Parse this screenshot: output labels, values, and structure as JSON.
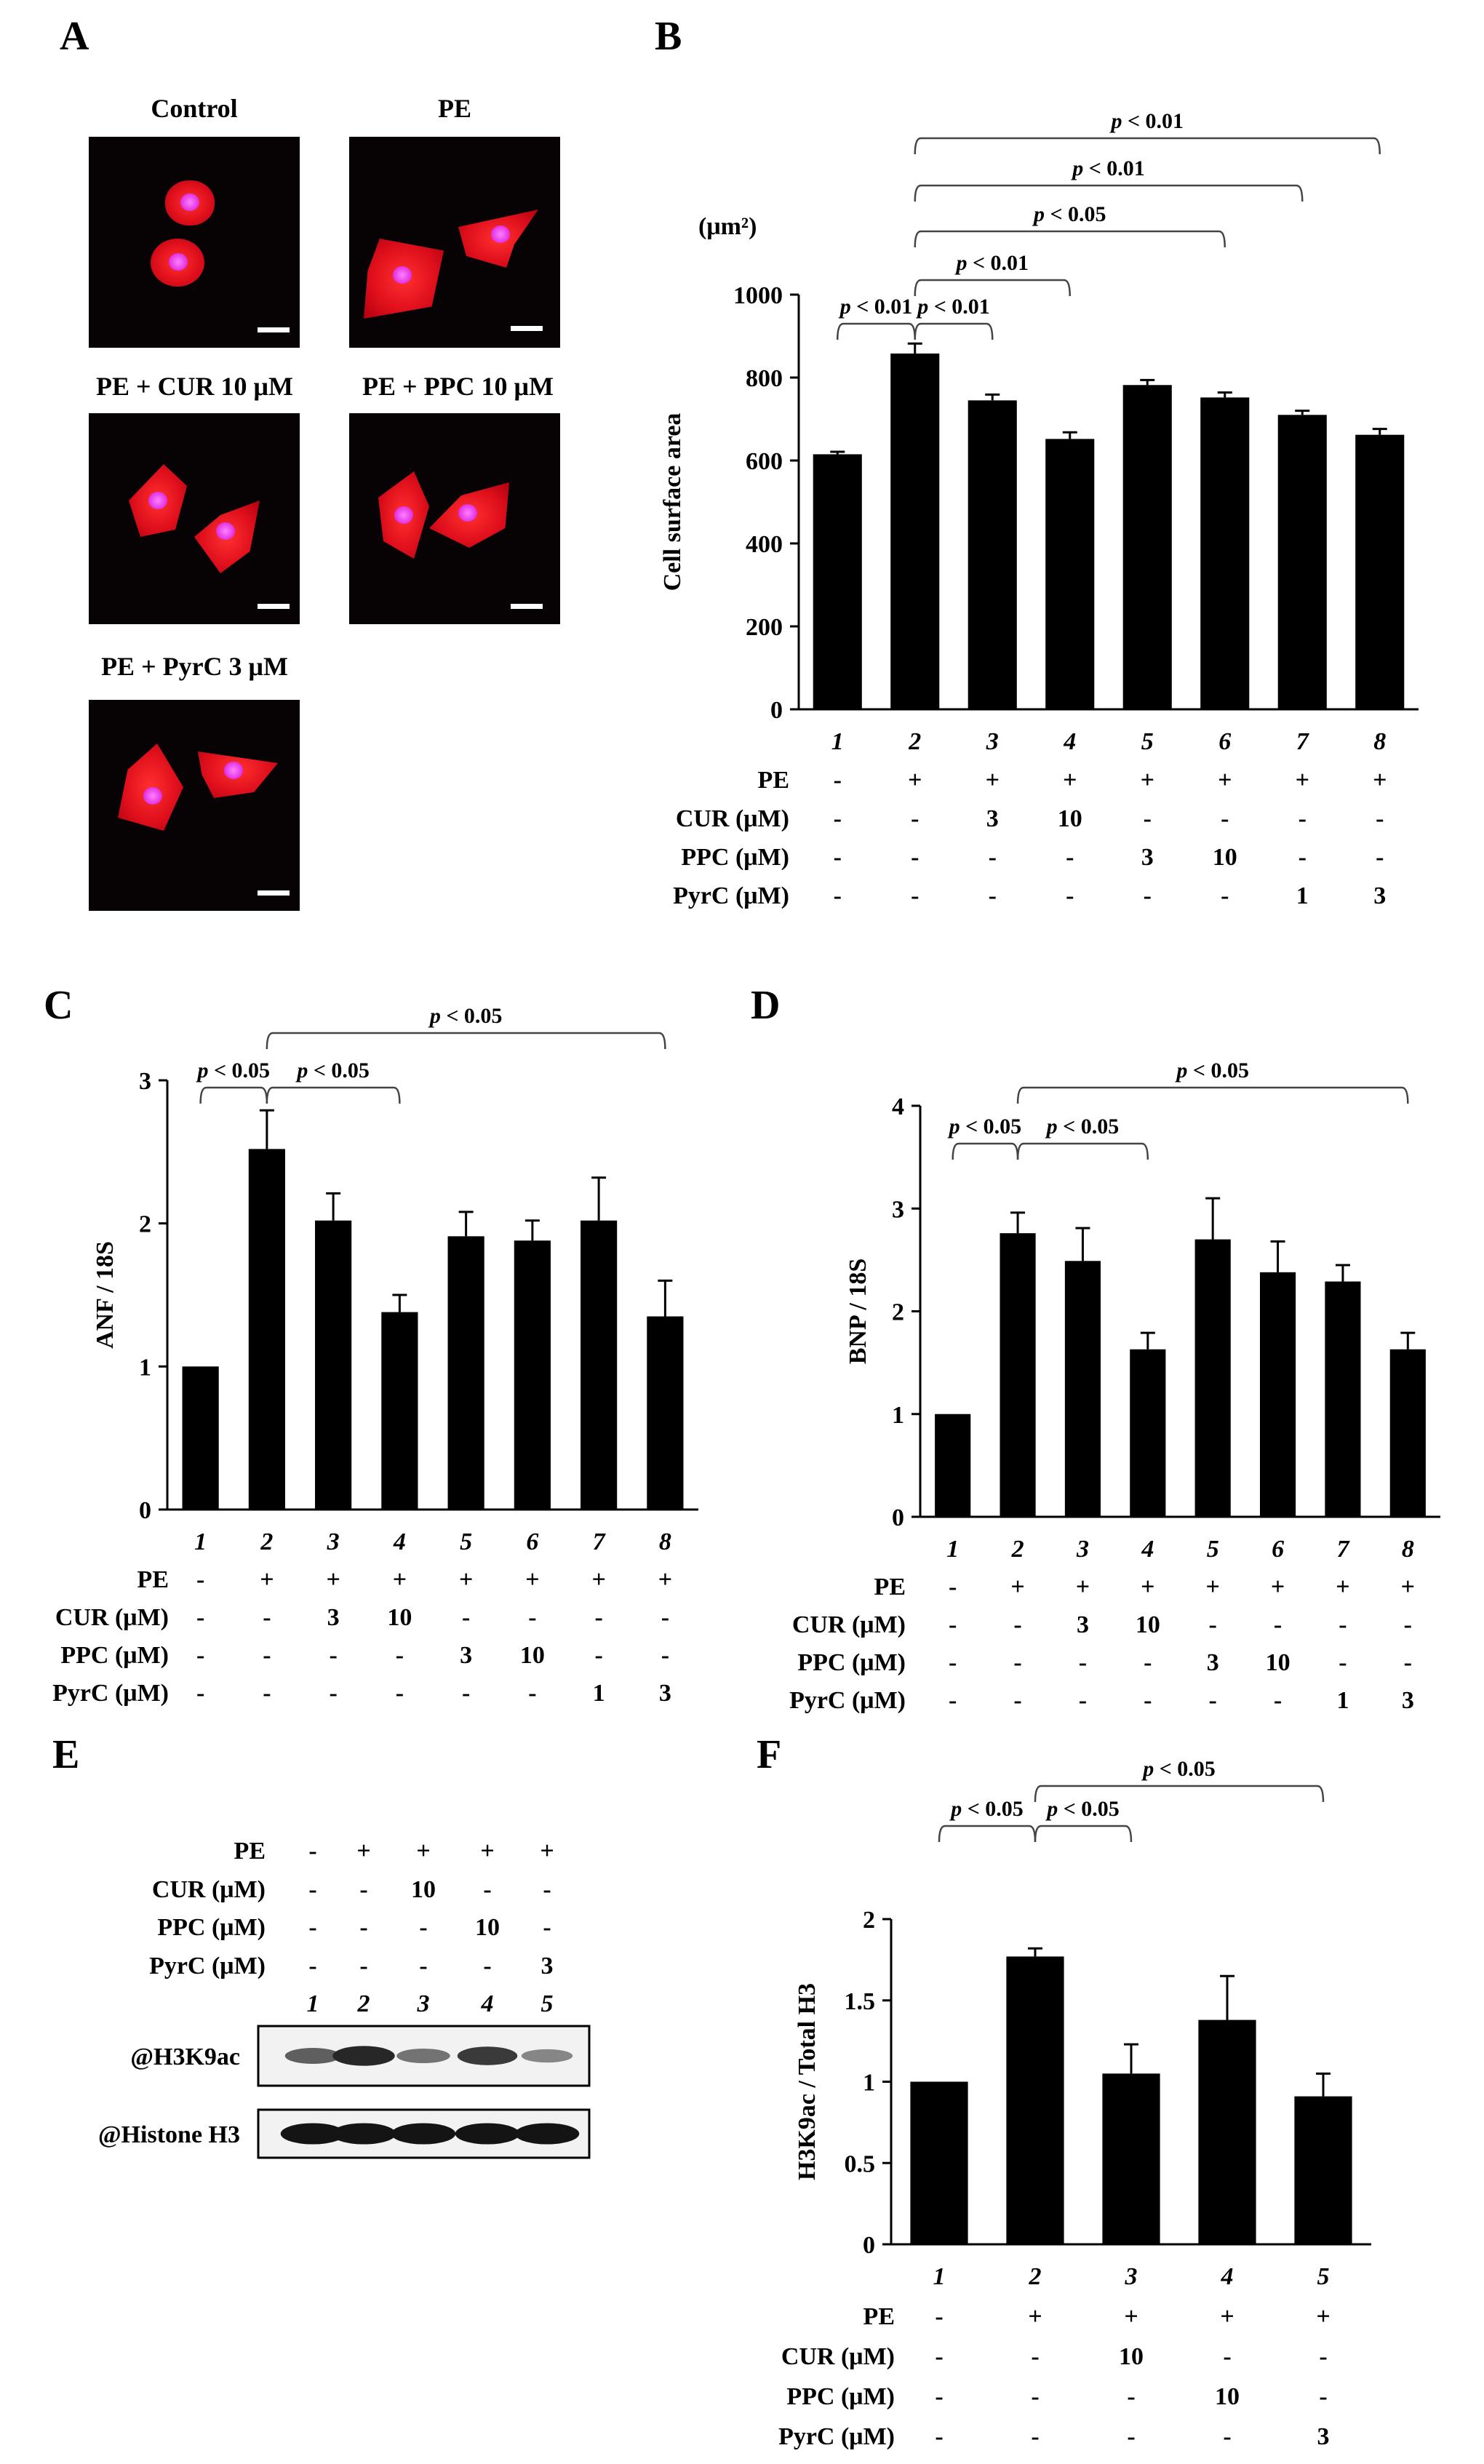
{
  "panels": {
    "A": "A",
    "B": "B",
    "C": "C",
    "D": "D",
    "E": "E",
    "F": "F"
  },
  "panel_a": {
    "images": [
      {
        "label": "Control"
      },
      {
        "label": "PE"
      },
      {
        "label": "PE + CUR 10 μM"
      },
      {
        "label": "PE + PPC 10 μM"
      },
      {
        "label": "PE + PyrC 3 μM"
      }
    ]
  },
  "panel_e": {
    "conditions": [
      {
        "name": "PE",
        "values": [
          "-",
          "+",
          "+",
          "+",
          "+"
        ]
      },
      {
        "name": "CUR (μM)",
        "values": [
          "-",
          "-",
          "10",
          "-",
          "-"
        ]
      },
      {
        "name": "PPC (μM)",
        "values": [
          "-",
          "-",
          "-",
          "10",
          "-"
        ]
      },
      {
        "name": "PyrC (μM)",
        "values": [
          "-",
          "-",
          "-",
          "-",
          "3"
        ]
      }
    ],
    "lanes": [
      "1",
      "2",
      "3",
      "4",
      "5"
    ],
    "blots": [
      {
        "label": "@H3K9ac",
        "band_intensity": [
          0.55,
          0.85,
          0.45,
          0.75,
          0.35
        ]
      },
      {
        "label": "@Histone H3",
        "band_intensity": [
          0.95,
          0.95,
          0.95,
          0.95,
          0.95
        ]
      }
    ]
  },
  "chart_data": [
    {
      "panel": "B",
      "type": "bar",
      "ylabel": "Cell surface area",
      "yunit": "(μm²)",
      "ylim": [
        0,
        1000
      ],
      "yticks": [
        0,
        200,
        400,
        600,
        800,
        1000
      ],
      "categories": [
        "1",
        "2",
        "3",
        "4",
        "5",
        "6",
        "7",
        "8"
      ],
      "values": [
        615,
        858,
        745,
        652,
        782,
        752,
        710,
        662
      ],
      "errors": [
        6,
        24,
        14,
        16,
        12,
        12,
        10,
        14
      ],
      "conditions": [
        {
          "name": "PE",
          "values": [
            "-",
            "+",
            "+",
            "+",
            "+",
            "+",
            "+",
            "+"
          ]
        },
        {
          "name": "CUR (μM)",
          "values": [
            "-",
            "-",
            "3",
            "10",
            "-",
            "-",
            "-",
            "-"
          ]
        },
        {
          "name": "PPC (μM)",
          "values": [
            "-",
            "-",
            "-",
            "-",
            "3",
            "10",
            "-",
            "-"
          ]
        },
        {
          "name": "PyrC (μM)",
          "values": [
            "-",
            "-",
            "-",
            "-",
            "-",
            "-",
            "1",
            "3"
          ]
        }
      ],
      "significance": [
        {
          "from": 1,
          "to": 2,
          "label": "p < 0.01"
        },
        {
          "from": 2,
          "to": 3,
          "label": "p < 0.01"
        },
        {
          "from": 2,
          "to": 4,
          "label": "p < 0.01"
        },
        {
          "from": 2,
          "to": 6,
          "label": "p < 0.05"
        },
        {
          "from": 2,
          "to": 7,
          "label": "p < 0.01"
        },
        {
          "from": 2,
          "to": 8,
          "label": "p < 0.01"
        }
      ]
    },
    {
      "panel": "C",
      "type": "bar",
      "ylabel": "ANF / 18S",
      "ylim": [
        0,
        3
      ],
      "yticks": [
        0,
        1,
        2,
        3
      ],
      "categories": [
        "1",
        "2",
        "3",
        "4",
        "5",
        "6",
        "7",
        "8"
      ],
      "values": [
        1.0,
        2.52,
        2.02,
        1.38,
        1.91,
        1.88,
        2.02,
        1.35
      ],
      "errors": [
        0,
        0.27,
        0.19,
        0.12,
        0.17,
        0.14,
        0.3,
        0.25
      ],
      "conditions": [
        {
          "name": "PE",
          "values": [
            "-",
            "+",
            "+",
            "+",
            "+",
            "+",
            "+",
            "+"
          ]
        },
        {
          "name": "CUR (μM)",
          "values": [
            "-",
            "-",
            "3",
            "10",
            "-",
            "-",
            "-",
            "-"
          ]
        },
        {
          "name": "PPC (μM)",
          "values": [
            "-",
            "-",
            "-",
            "-",
            "3",
            "10",
            "-",
            "-"
          ]
        },
        {
          "name": "PyrC (μM)",
          "values": [
            "-",
            "-",
            "-",
            "-",
            "-",
            "-",
            "1",
            "3"
          ]
        }
      ],
      "significance": [
        {
          "from": 1,
          "to": 2,
          "label": "p < 0.05"
        },
        {
          "from": 2,
          "to": 4,
          "label": "p < 0.05"
        },
        {
          "from": 2,
          "to": 8,
          "label": "p < 0.05"
        }
      ]
    },
    {
      "panel": "D",
      "type": "bar",
      "ylabel": "BNP / 18S",
      "ylim": [
        0,
        4
      ],
      "yticks": [
        0,
        1,
        2,
        3,
        4
      ],
      "categories": [
        "1",
        "2",
        "3",
        "4",
        "5",
        "6",
        "7",
        "8"
      ],
      "values": [
        1.0,
        2.76,
        2.49,
        1.63,
        2.7,
        2.38,
        2.29,
        1.63
      ],
      "errors": [
        0,
        0.2,
        0.32,
        0.16,
        0.4,
        0.3,
        0.16,
        0.16
      ],
      "conditions": [
        {
          "name": "PE",
          "values": [
            "-",
            "+",
            "+",
            "+",
            "+",
            "+",
            "+",
            "+"
          ]
        },
        {
          "name": "CUR (μM)",
          "values": [
            "-",
            "-",
            "3",
            "10",
            "-",
            "-",
            "-",
            "-"
          ]
        },
        {
          "name": "PPC (μM)",
          "values": [
            "-",
            "-",
            "-",
            "-",
            "3",
            "10",
            "-",
            "-"
          ]
        },
        {
          "name": "PyrC (μM)",
          "values": [
            "-",
            "-",
            "-",
            "-",
            "-",
            "-",
            "1",
            "3"
          ]
        }
      ],
      "significance": [
        {
          "from": 1,
          "to": 2,
          "label": "p < 0.05"
        },
        {
          "from": 2,
          "to": 4,
          "label": "p < 0.05"
        },
        {
          "from": 2,
          "to": 8,
          "label": "p < 0.05"
        }
      ]
    },
    {
      "panel": "F",
      "type": "bar",
      "ylabel": "H3K9ac / Total H3",
      "ylim": [
        0,
        2
      ],
      "yticks": [
        0,
        0.5,
        1,
        1.5,
        2
      ],
      "ytick_labels": [
        "0",
        "0.5",
        "1",
        "1.5",
        "2"
      ],
      "categories": [
        "1",
        "2",
        "3",
        "4",
        "5"
      ],
      "values": [
        1.0,
        1.77,
        1.05,
        1.38,
        0.91
      ],
      "errors": [
        0,
        0.05,
        0.18,
        0.27,
        0.14
      ],
      "conditions": [
        {
          "name": "PE",
          "values": [
            "-",
            "+",
            "+",
            "+",
            "+"
          ]
        },
        {
          "name": "CUR (μM)",
          "values": [
            "-",
            "-",
            "10",
            "-",
            "-"
          ]
        },
        {
          "name": "PPC (μM)",
          "values": [
            "-",
            "-",
            "-",
            "10",
            "-"
          ]
        },
        {
          "name": "PyrC (μM)",
          "values": [
            "-",
            "-",
            "-",
            "-",
            "3"
          ]
        }
      ],
      "significance": [
        {
          "from": 1,
          "to": 2,
          "label": "p < 0.05"
        },
        {
          "from": 2,
          "to": 3,
          "label": "p < 0.05"
        },
        {
          "from": 2,
          "to": 5,
          "label": "p < 0.05"
        }
      ]
    }
  ]
}
